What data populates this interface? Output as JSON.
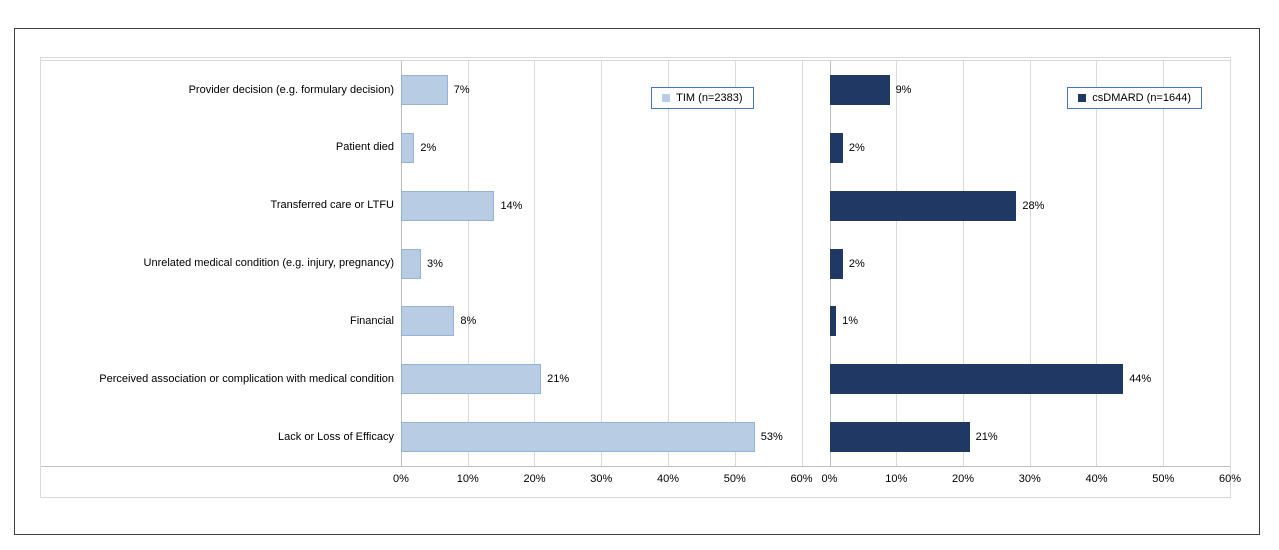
{
  "chart_data": {
    "type": "bar",
    "orientation": "horizontal",
    "title": "",
    "categories": [
      "Provider decision (e.g. formulary decision)",
      "Patient died",
      "Transferred care or LTFU",
      "Unrelated medical condition (e.g. injury, pregnancy)",
      "Financial",
      "Perceived association or complication with medical condition",
      "Lack or Loss of Efficacy"
    ],
    "series": [
      {
        "name": "TIM (n=2383)",
        "values": [
          7,
          2,
          14,
          3,
          8,
          21,
          53
        ],
        "data_labels": [
          "7%",
          "2%",
          "14%",
          "3%",
          "8%",
          "21%",
          "53%"
        ],
        "color": "#b8cce4",
        "border_color": "#95b3d7"
      },
      {
        "name": "csDMARD (n=1644)",
        "values": [
          9,
          2,
          28,
          2,
          1,
          44,
          21
        ],
        "data_labels": [
          "9%",
          "2%",
          "28%",
          "2%",
          "1%",
          "44%",
          "21%"
        ],
        "color": "#1f3864",
        "border_color": "#1f3864"
      }
    ],
    "xlim": [
      0,
      60
    ],
    "x_ticks": [
      "0%",
      "10%",
      "20%",
      "30%",
      "40%",
      "50%",
      "60%"
    ],
    "grid": true,
    "legend_position": "inside-top-right-per-panel"
  },
  "colors": {
    "legend_border": "#4472c4",
    "gridline": "#d9d9d9",
    "axis_line": "#bfbfbf",
    "outer_border": "#3f3f3f",
    "chart_border": "#d9d9d9"
  }
}
